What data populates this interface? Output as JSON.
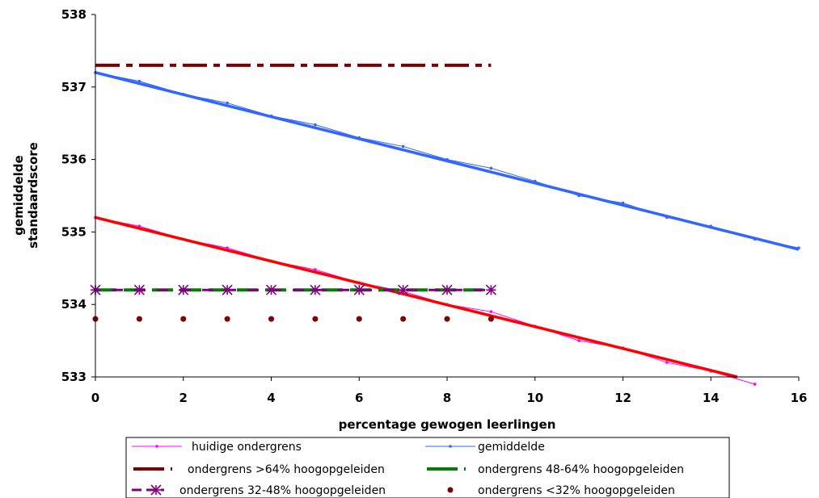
{
  "chart_data": {
    "type": "line",
    "xlabel": "percentage gewogen leerlingen",
    "ylabel": [
      "gemiddelde",
      "standaardscore"
    ],
    "xlim": [
      0,
      16
    ],
    "ylim": [
      533,
      538
    ],
    "xticks": [
      "0",
      "2",
      "4",
      "6",
      "8",
      "10",
      "12",
      "14",
      "16"
    ],
    "yticks": [
      "533",
      "534",
      "535",
      "536",
      "537",
      "538"
    ],
    "grid": false,
    "legend_position": "bottom",
    "series": [
      {
        "name": "huidige ondergrens",
        "color": "#ff00ff",
        "marker": "dot",
        "x": [
          0,
          1,
          2,
          3,
          4,
          5,
          6,
          7,
          8,
          9,
          10,
          11,
          12,
          13,
          14,
          15
        ],
        "y": [
          535.2,
          535.08,
          534.9,
          534.78,
          534.6,
          534.48,
          534.3,
          534.18,
          534.0,
          533.9,
          533.7,
          533.5,
          533.4,
          533.2,
          533.08,
          532.9
        ]
      },
      {
        "name": "gemiddelde",
        "color": "#3366ff",
        "marker": "dot",
        "x": [
          0,
          1,
          2,
          3,
          4,
          5,
          6,
          7,
          8,
          9,
          10,
          11,
          12,
          13,
          14,
          15,
          16
        ],
        "y": [
          537.2,
          537.08,
          536.9,
          536.78,
          536.6,
          536.48,
          536.3,
          536.18,
          536.0,
          535.88,
          535.7,
          535.5,
          535.4,
          535.2,
          535.08,
          534.9,
          534.78
        ]
      },
      {
        "name": "ondergrens >64% hoogopgeleiden",
        "color": "#800000",
        "style": "dash-dot",
        "x": [
          0,
          9
        ],
        "y": [
          537.3,
          537.3
        ]
      },
      {
        "name": "ondergrens 48-64% hoogopgeleiden",
        "color": "#008000",
        "style": "dashed",
        "x": [
          0,
          8.8
        ],
        "y": [
          534.2,
          534.2
        ]
      },
      {
        "name": "ondergrens 32-48% hoogopgeleiden",
        "color": "#800080",
        "style": "dashed",
        "marker": "asterisk",
        "x": [
          0,
          1,
          2,
          3,
          4,
          5,
          6,
          7,
          8,
          9
        ],
        "y": [
          534.2,
          534.2,
          534.2,
          534.2,
          534.2,
          534.2,
          534.2,
          534.2,
          534.2,
          534.2
        ]
      },
      {
        "name": "ondergrens <32% hoogopgeleiden",
        "color": "#800000",
        "style": "none",
        "marker": "dot",
        "x": [
          0,
          1,
          2,
          3,
          4,
          5,
          6,
          7,
          8,
          9
        ],
        "y": [
          533.8,
          533.8,
          533.8,
          533.8,
          533.8,
          533.8,
          533.8,
          533.8,
          533.8,
          533.8
        ]
      }
    ],
    "trendlines": [
      {
        "series": "huidige ondergrens",
        "color": "#ff0000",
        "x": [
          0,
          14.6
        ],
        "y": [
          535.2,
          533.0
        ]
      },
      {
        "series": "gemiddelde",
        "color": "#3366ff",
        "x": [
          0,
          16
        ],
        "y": [
          537.2,
          534.76
        ]
      }
    ]
  }
}
